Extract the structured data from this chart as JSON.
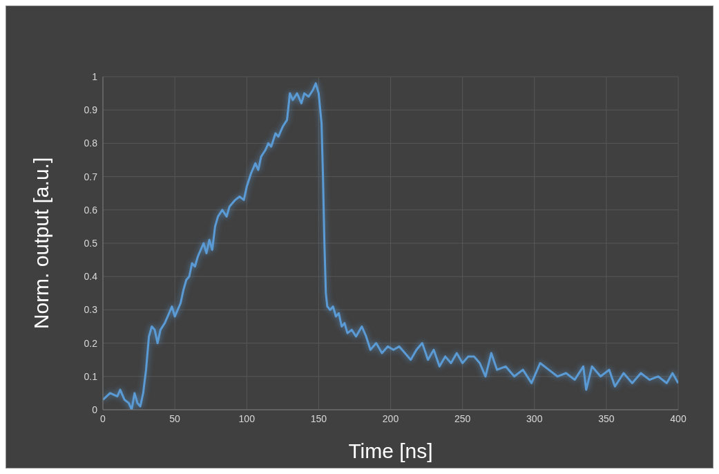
{
  "chart_data": {
    "type": "line",
    "xlabel": "Time [ns]",
    "ylabel": "Norm. output [a.u.]",
    "xlim": [
      0,
      400
    ],
    "xticks": [
      0,
      50,
      100,
      150,
      200,
      250,
      300,
      350,
      400
    ],
    "ylim": [
      0,
      1
    ],
    "yticks": [
      0,
      0.1,
      0.2,
      0.3,
      0.4,
      0.5,
      0.6,
      0.7,
      0.8,
      0.9,
      1
    ],
    "grid": true,
    "series": [
      {
        "color": "#5b9bd5",
        "x": [
          0,
          5,
          10,
          12,
          15,
          18,
          20,
          22,
          24,
          26,
          28,
          30,
          32,
          34,
          36,
          38,
          40,
          43,
          46,
          48,
          50,
          52,
          54,
          56,
          58,
          60,
          62,
          64,
          66,
          68,
          70,
          72,
          74,
          76,
          78,
          80,
          83,
          86,
          88,
          92,
          95,
          98,
          100,
          103,
          106,
          108,
          110,
          113,
          115,
          117,
          120,
          122,
          125,
          128,
          130,
          132,
          135,
          138,
          140,
          143,
          146,
          148,
          150,
          152,
          153,
          154,
          155,
          156,
          158,
          160,
          162,
          164,
          166,
          168,
          170,
          173,
          176,
          180,
          183,
          186,
          190,
          194,
          198,
          202,
          206,
          210,
          214,
          218,
          222,
          226,
          230,
          234,
          238,
          242,
          246,
          250,
          254,
          258,
          262,
          266,
          270,
          274,
          280,
          286,
          292,
          298,
          304,
          310,
          316,
          322,
          328,
          334,
          336,
          340,
          346,
          352,
          356,
          362,
          368,
          374,
          380,
          386,
          392,
          396,
          400
        ],
        "values": [
          0.03,
          0.05,
          0.04,
          0.06,
          0.03,
          0.02,
          0.0,
          0.05,
          0.02,
          0.01,
          0.05,
          0.12,
          0.22,
          0.25,
          0.24,
          0.2,
          0.24,
          0.26,
          0.29,
          0.31,
          0.28,
          0.3,
          0.32,
          0.36,
          0.39,
          0.4,
          0.44,
          0.43,
          0.46,
          0.48,
          0.5,
          0.47,
          0.51,
          0.48,
          0.55,
          0.58,
          0.6,
          0.58,
          0.61,
          0.63,
          0.64,
          0.63,
          0.67,
          0.71,
          0.74,
          0.72,
          0.76,
          0.78,
          0.8,
          0.79,
          0.83,
          0.82,
          0.85,
          0.87,
          0.95,
          0.93,
          0.95,
          0.92,
          0.95,
          0.94,
          0.96,
          0.98,
          0.95,
          0.86,
          0.7,
          0.5,
          0.35,
          0.31,
          0.3,
          0.31,
          0.28,
          0.29,
          0.25,
          0.26,
          0.23,
          0.24,
          0.22,
          0.25,
          0.22,
          0.18,
          0.2,
          0.17,
          0.19,
          0.18,
          0.19,
          0.17,
          0.15,
          0.18,
          0.2,
          0.15,
          0.18,
          0.13,
          0.16,
          0.14,
          0.17,
          0.14,
          0.16,
          0.16,
          0.14,
          0.1,
          0.17,
          0.12,
          0.13,
          0.1,
          0.12,
          0.08,
          0.14,
          0.12,
          0.1,
          0.11,
          0.09,
          0.13,
          0.06,
          0.13,
          0.1,
          0.12,
          0.07,
          0.11,
          0.08,
          0.11,
          0.09,
          0.1,
          0.08,
          0.11,
          0.08
        ]
      }
    ]
  }
}
